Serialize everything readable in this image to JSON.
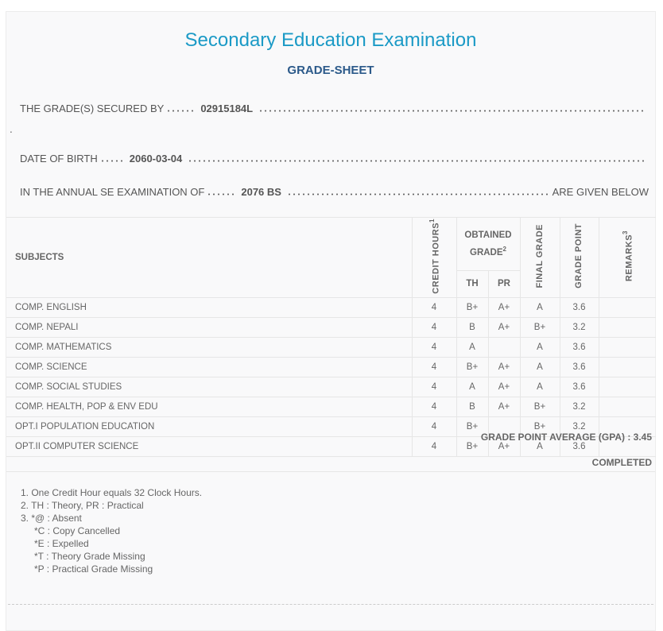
{
  "header": {
    "title": "Secondary Education Examination",
    "subtitle": "GRADE-SHEET"
  },
  "info": {
    "secured_by_label": "THE GRADE(S) SECURED BY",
    "secured_by_value": "02915184L",
    "dob_label": "DATE OF BIRTH",
    "dob_value": "2060-03-04",
    "exam_label": "IN THE ANNUAL SE EXAMINATION OF",
    "exam_value": "2076 BS",
    "exam_suffix": "ARE GIVEN BELOW"
  },
  "table": {
    "headers": {
      "subjects": "SUBJECTS",
      "credit": "CREDIT HOURS",
      "credit_sup": "1",
      "obtained": "OBTAINED GRADE",
      "obtained_sup": "2",
      "th": "TH",
      "pr": "PR",
      "final": "FINAL GRADE",
      "point": "GRADE POINT",
      "remarks": "REMARKS",
      "remarks_sup": "3"
    },
    "rows": [
      {
        "subject": "COMP. ENGLISH",
        "credit": "4",
        "th": "B+",
        "pr": "A+",
        "final": "A",
        "point": "3.6",
        "remarks": ""
      },
      {
        "subject": "COMP. NEPALI",
        "credit": "4",
        "th": "B",
        "pr": "A+",
        "final": "B+",
        "point": "3.2",
        "remarks": ""
      },
      {
        "subject": "COMP. MATHEMATICS",
        "credit": "4",
        "th": "A",
        "pr": "",
        "final": "A",
        "point": "3.6",
        "remarks": ""
      },
      {
        "subject": "COMP. SCIENCE",
        "credit": "4",
        "th": "B+",
        "pr": "A+",
        "final": "A",
        "point": "3.6",
        "remarks": ""
      },
      {
        "subject": "COMP. SOCIAL STUDIES",
        "credit": "4",
        "th": "A",
        "pr": "A+",
        "final": "A",
        "point": "3.6",
        "remarks": ""
      },
      {
        "subject": "COMP. HEALTH, POP & ENV EDU",
        "credit": "4",
        "th": "B",
        "pr": "A+",
        "final": "B+",
        "point": "3.2",
        "remarks": ""
      },
      {
        "subject": "OPT.I POPULATION EDUCATION",
        "credit": "4",
        "th": "B+",
        "pr": "",
        "final": "B+",
        "point": "3.2",
        "remarks": ""
      },
      {
        "subject": "OPT.II COMPUTER SCIENCE",
        "credit": "4",
        "th": "B+",
        "pr": "A+",
        "final": "A",
        "point": "3.6",
        "remarks": ""
      }
    ]
  },
  "summary": {
    "gpa": "GRADE POINT AVERAGE (GPA) : 3.45",
    "status": "COMPLETED"
  },
  "notes": [
    "1. One Credit Hour equals 32 Clock Hours.",
    "2. TH : Theory, PR : Practical",
    "3. *@ : Absent",
    "*C : Copy Cancelled",
    "*E : Expelled",
    "*T : Theory Grade Missing",
    "*P : Practical Grade Missing"
  ]
}
